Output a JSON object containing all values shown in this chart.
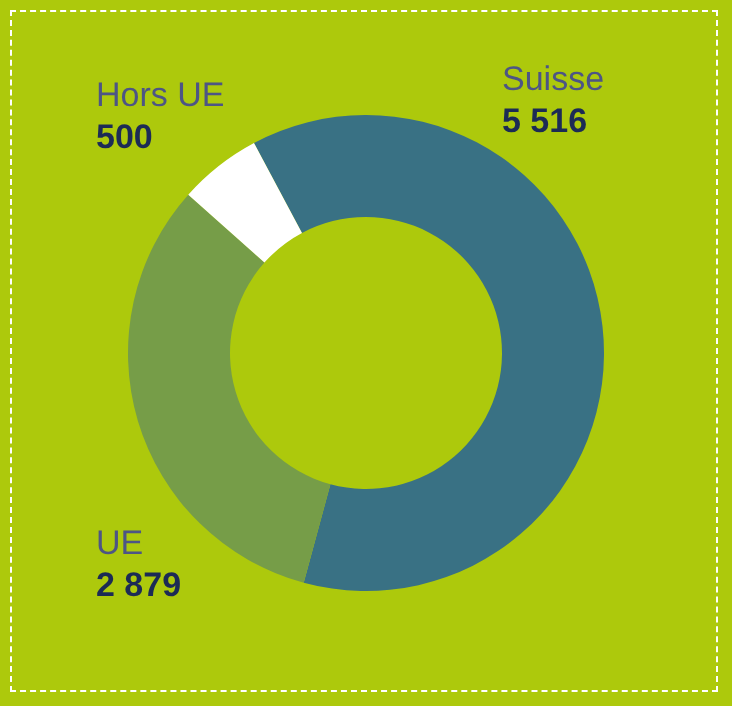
{
  "chart_data": {
    "type": "donut",
    "categories": [
      "Suisse",
      "UE",
      "Hors UE"
    ],
    "values": [
      5516,
      2879,
      500
    ],
    "colors": [
      "#397184",
      "#769d48",
      "#ffffff"
    ],
    "value_labels": [
      "5 516",
      "2 879",
      "500"
    ]
  }
}
